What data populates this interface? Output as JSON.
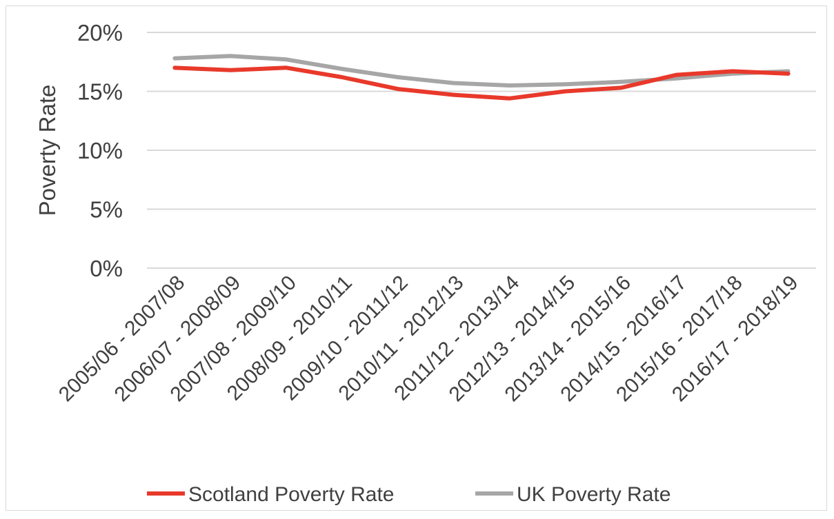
{
  "chart_data": {
    "type": "line",
    "title": "",
    "xlabel": "",
    "ylabel": "Poverty Rate",
    "ylim": [
      0,
      0.2
    ],
    "yticks": [
      0,
      0.05,
      0.1,
      0.15,
      0.2
    ],
    "ytick_labels": [
      "0%",
      "5%",
      "10%",
      "15%",
      "20%"
    ],
    "grid": true,
    "legend_position": "bottom",
    "categories": [
      "2005/06 - 2007/08",
      "2006/07 - 2008/09",
      "2007/08 - 2009/10",
      "2008/09 - 2010/11",
      "2009/10 - 2011/12",
      "2010/11 - 2012/13",
      "2011/12 - 2013/14",
      "2012/13 - 2014/15",
      "2013/14 - 2015/16",
      "2014/15 - 2016/17",
      "2015/16 - 2017/18",
      "2016/17 - 2018/19"
    ],
    "series": [
      {
        "name": "Scotland Poverty Rate",
        "color": "#e8392b",
        "values": [
          0.17,
          0.168,
          0.17,
          0.162,
          0.152,
          0.147,
          0.144,
          0.15,
          0.153,
          0.164,
          0.167,
          0.165
        ]
      },
      {
        "name": "UK Poverty Rate",
        "color": "#a6a6a6",
        "values": [
          0.178,
          0.18,
          0.177,
          0.169,
          0.162,
          0.157,
          0.155,
          0.156,
          0.158,
          0.161,
          0.165,
          0.167
        ]
      }
    ]
  }
}
